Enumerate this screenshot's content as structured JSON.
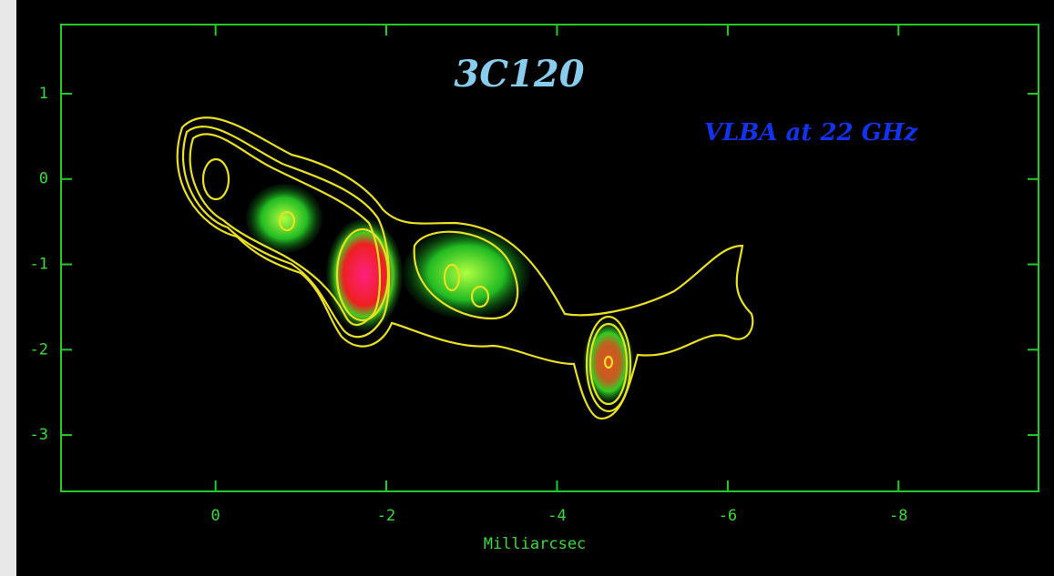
{
  "chart_data": {
    "type": "image",
    "title": "3C120",
    "subtitle": "VLBA at 22 GHz",
    "xlabel": "Milliarcsec",
    "xlim": [
      1.81,
      -9.64
    ],
    "xticks": [
      0,
      -2,
      -4,
      -6,
      -8
    ],
    "ylim": [
      -3.66,
      1.81
    ],
    "yticks": [
      1,
      0,
      -1,
      -2,
      -3
    ],
    "color": "#22cc22"
  }
}
